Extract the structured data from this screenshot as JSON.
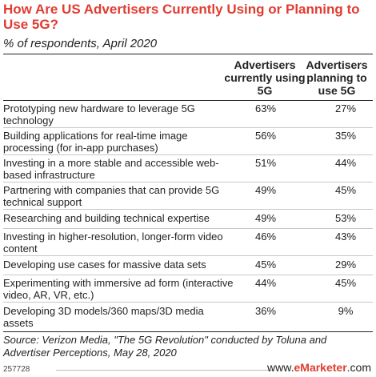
{
  "header": {
    "title": "How Are US Advertisers Currently Using or Planning to Use 5G?",
    "subtitle": "% of respondents, April 2020"
  },
  "chart_data": {
    "type": "table",
    "columns": [
      "Advertisers currently using 5G",
      "Advertisers planning to use 5G"
    ],
    "rows": [
      {
        "label": "Prototyping new hardware to leverage 5G technology",
        "current": "63%",
        "planning": "27%"
      },
      {
        "label": "Building applications for real-time image processing (for in-app purchases)",
        "current": "56%",
        "planning": "35%"
      },
      {
        "label": "Investing in a more stable and accessible web-based infrastructure",
        "current": "51%",
        "planning": "44%"
      },
      {
        "label": "Partnering with companies that can provide 5G technical support",
        "current": "49%",
        "planning": "45%"
      },
      {
        "label": "Researching and building technical expertise",
        "current": "49%",
        "planning": "53%"
      },
      {
        "label": "Investing in higher-resolution, longer-form video content",
        "current": "46%",
        "planning": "43%"
      },
      {
        "label": "Developing use cases for massive data sets",
        "current": "45%",
        "planning": "29%"
      },
      {
        "label": "Experimenting with immersive ad form (interactive video, AR, VR, etc.)",
        "current": "44%",
        "planning": "45%"
      },
      {
        "label": "Developing 3D models/360 maps/3D media assets",
        "current": "36%",
        "planning": "9%"
      }
    ]
  },
  "footer": {
    "source": "Source: Verizon Media, \"The 5G Revolution\" conducted by Toluna and Advertiser Perceptions, May 28, 2020",
    "chart_id": "257728",
    "logo_prefix": "www.",
    "logo_brand": "eMarketer",
    "logo_suffix": ".com"
  }
}
